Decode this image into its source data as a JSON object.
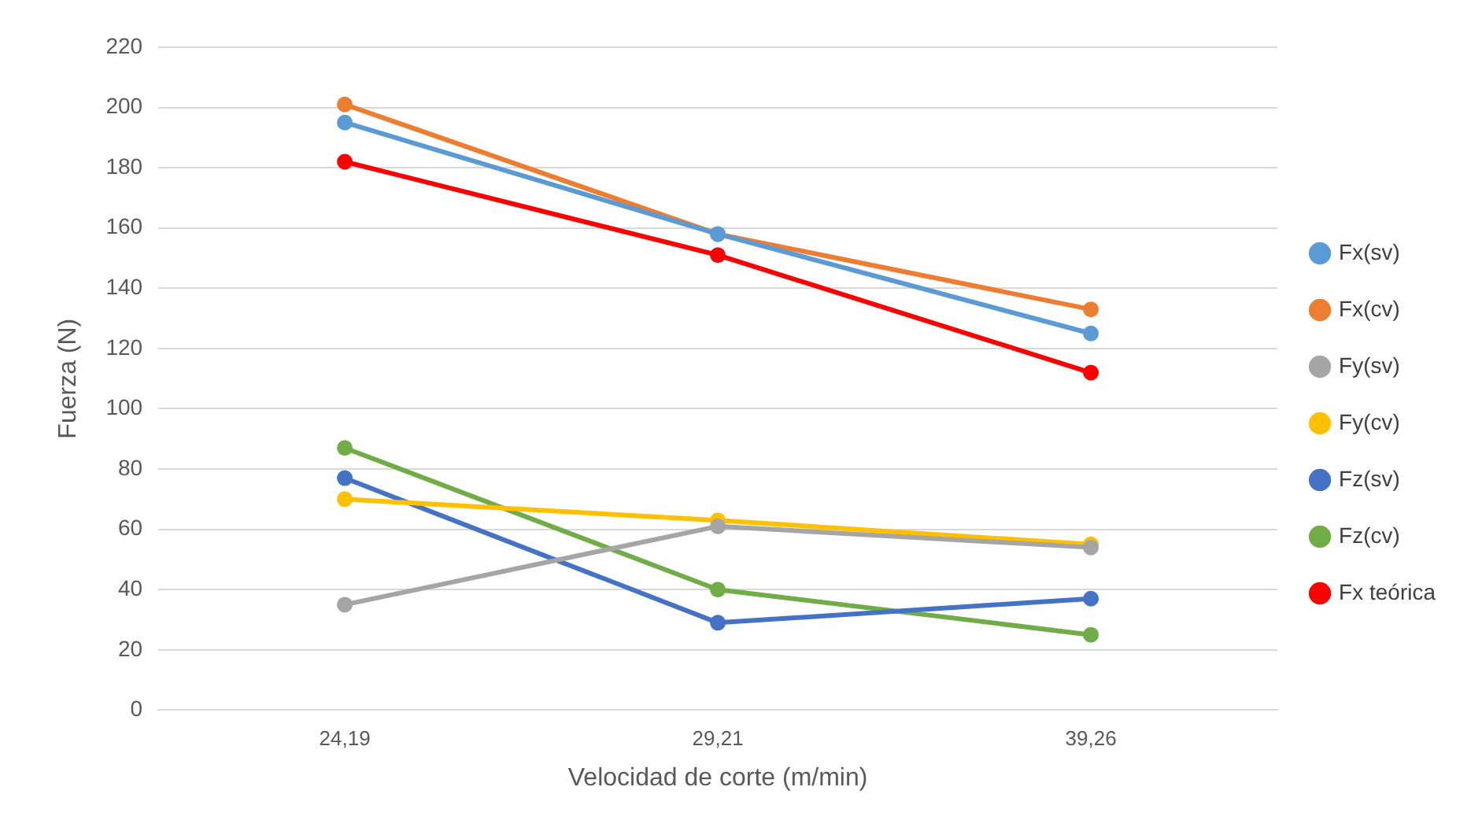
{
  "chart_data": {
    "type": "line",
    "xlabel": "Velocidad de corte (m/min)",
    "ylabel": "Fuerza (N)",
    "categories": [
      "24,19",
      "29,21",
      "39,26"
    ],
    "series": [
      {
        "name": "Fx(sv)",
        "color": "#5b9bd5",
        "values": [
          195,
          158,
          125
        ]
      },
      {
        "name": "Fx(cv)",
        "color": "#ed7d31",
        "values": [
          201,
          158,
          133
        ]
      },
      {
        "name": "Fy(sv)",
        "color": "#a5a5a5",
        "values": [
          35,
          61,
          54
        ]
      },
      {
        "name": "Fy(cv)",
        "color": "#ffc000",
        "values": [
          70,
          63,
          55
        ]
      },
      {
        "name": "Fz(sv)",
        "color": "#4472c4",
        "values": [
          77,
          29,
          37
        ]
      },
      {
        "name": "Fz(cv)",
        "color": "#70ad47",
        "values": [
          87,
          40,
          25
        ]
      },
      {
        "name": "Fx teórica",
        "color": "#ff0000",
        "values": [
          182,
          151,
          112
        ]
      }
    ],
    "ylim": [
      0,
      220
    ],
    "yticks": [
      0,
      20,
      40,
      60,
      80,
      100,
      120,
      140,
      160,
      180,
      200,
      220
    ],
    "grid": "y",
    "legend": "right",
    "marker": "circle",
    "line_style": "solid"
  }
}
